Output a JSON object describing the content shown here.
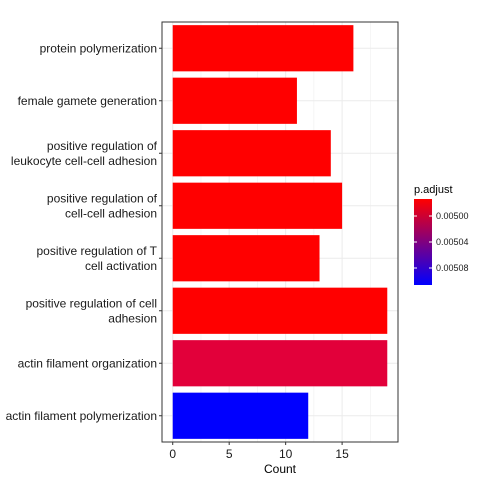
{
  "chart_data": {
    "type": "bar",
    "orientation": "horizontal",
    "xlabel": "Count",
    "ylabel": "",
    "xlim": [
      -0.95,
      19.95
    ],
    "x_ticks": [
      0,
      5,
      10,
      15
    ],
    "grid": true,
    "categories": [
      [
        "protein polymerization"
      ],
      [
        "female gamete generation"
      ],
      [
        "positive regulation of",
        "leukocyte cell-cell adhesion"
      ],
      [
        "positive regulation of",
        "cell-cell adhesion"
      ],
      [
        "positive regulation of T",
        "cell activation"
      ],
      [
        "positive regulation of cell",
        "adhesion"
      ],
      [
        "actin filament organization"
      ],
      [
        "actin filament polymerization"
      ]
    ],
    "values": [
      16,
      11,
      14,
      15,
      13,
      19,
      19,
      12
    ],
    "colors": [
      "#ff0000",
      "#ff0000",
      "#ff0000",
      "#ff0000",
      "#ff0000",
      "#ff0000",
      "#e2003a",
      "#0000ff"
    ],
    "legend": {
      "title": "p.adjust",
      "placement": "right",
      "ticks": [
        "0.00500",
        "0.00504",
        "0.00508"
      ],
      "gradient": [
        "#ff0000",
        "#0000ff"
      ]
    }
  }
}
